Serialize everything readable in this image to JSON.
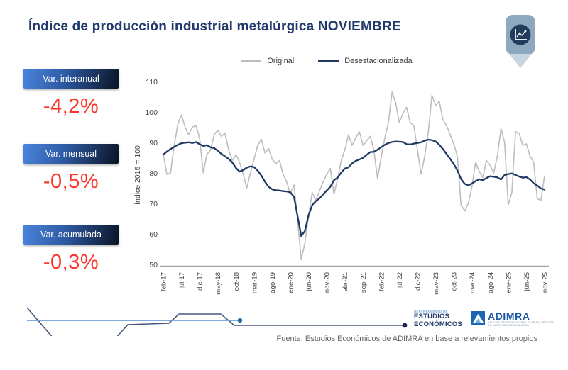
{
  "title": "Índice de producción industrial metalúrgica NOVIEMBRE",
  "header_icon": "line-chart-pin",
  "stats": [
    {
      "label": "Var. interanual",
      "value": "-4,2%"
    },
    {
      "label": "Var. mensual",
      "value": "-0,5%"
    },
    {
      "label": "Var. acumulada",
      "value": "-0,3%"
    }
  ],
  "colors": {
    "title_navy": "#20386b",
    "negative_value": "#fa352c",
    "original_line": "#bdbdbd",
    "desestacionalizada_line": "#1f3864"
  },
  "chart_data": {
    "type": "line",
    "title": "",
    "xlabel": "",
    "ylabel": "Índice 2015 = 100",
    "ylim": [
      50,
      110
    ],
    "y_ticks": [
      110,
      100,
      90,
      80,
      70,
      60,
      50
    ],
    "grid": false,
    "legend_position": "top-center",
    "x_start": "feb-17",
    "x_end": "nov-25",
    "n_points": 106,
    "tick_every": 5,
    "x_tick_labels": [
      "feb-17",
      "jul-17",
      "dic-17",
      "may-18",
      "oct-18",
      "mar-19",
      "ago-19",
      "ene-20",
      "jun-20",
      "nov-20",
      "abr-21",
      "sep-21",
      "feb-22",
      "jul-22",
      "dic-22",
      "may-23",
      "oct-23",
      "mar-24",
      "ago-24",
      "ene-25",
      "jun-25",
      "nov-25"
    ],
    "series": [
      {
        "name": "Original",
        "color": "#bdbdbd",
        "width": 1.6,
        "values": [
          86.5,
          80.0,
          80.5,
          89.5,
          96.5,
          99.5,
          95.5,
          93.0,
          95.5,
          96.0,
          92.0,
          80.5,
          86.5,
          88.0,
          93.0,
          94.5,
          92.5,
          93.5,
          88.0,
          84.5,
          86.5,
          84.0,
          80.0,
          75.5,
          80.5,
          85.0,
          89.5,
          91.5,
          87.0,
          88.5,
          85.0,
          83.5,
          84.5,
          80.0,
          77.5,
          73.5,
          76.5,
          65.0,
          52.0,
          57.5,
          66.5,
          74.0,
          71.5,
          74.5,
          77.5,
          80.0,
          82.0,
          73.5,
          78.5,
          84.5,
          88.0,
          93.0,
          89.5,
          92.0,
          94.0,
          89.5,
          91.0,
          92.5,
          88.0,
          78.5,
          85.5,
          92.0,
          97.0,
          107.0,
          103.5,
          97.0,
          100.0,
          102.0,
          97.0,
          96.0,
          88.0,
          80.0,
          86.0,
          94.0,
          106.0,
          102.5,
          104.0,
          98.0,
          96.0,
          93.0,
          90.0,
          86.0,
          70.0,
          68.0,
          70.5,
          76.0,
          84.0,
          81.0,
          79.0,
          84.5,
          83.0,
          80.5,
          86.0,
          95.0,
          90.5,
          70.0,
          74.0,
          94.0,
          93.5,
          89.5,
          90.0,
          86.0,
          84.0,
          72.0,
          71.5,
          79.5
        ]
      },
      {
        "name": "Desestacionalizada",
        "color": "#1f3864",
        "width": 2.3,
        "values": [
          86.5,
          87.5,
          88.3,
          89.0,
          89.7,
          90.2,
          90.4,
          90.5,
          90.3,
          90.6,
          89.9,
          89.3,
          89.6,
          88.9,
          88.6,
          87.8,
          86.7,
          85.9,
          85.1,
          83.9,
          82.1,
          80.9,
          81.4,
          82.2,
          82.6,
          82.4,
          81.2,
          79.6,
          77.6,
          75.9,
          75.1,
          74.8,
          74.7,
          74.5,
          74.4,
          74.1,
          72.6,
          66.2,
          59.8,
          61.4,
          66.6,
          69.9,
          71.2,
          72.1,
          73.4,
          74.7,
          75.9,
          78.1,
          78.9,
          80.6,
          81.9,
          82.3,
          83.6,
          84.4,
          84.9,
          85.4,
          86.4,
          87.3,
          87.4,
          88.1,
          88.9,
          89.7,
          90.3,
          90.6,
          90.8,
          90.7,
          90.6,
          89.9,
          89.8,
          90.1,
          90.3,
          90.5,
          91.1,
          91.4,
          91.2,
          90.8,
          89.7,
          88.3,
          86.7,
          85.1,
          83.4,
          81.3,
          78.5,
          76.9,
          76.4,
          77.0,
          77.8,
          78.4,
          78.1,
          78.8,
          79.4,
          79.2,
          79.0,
          78.3,
          79.8,
          80.1,
          80.3,
          79.8,
          79.3,
          78.9,
          79.1,
          78.3,
          77.1,
          76.3,
          75.4,
          75.0
        ]
      }
    ]
  },
  "footer": {
    "dept": {
      "small": "DEPARTAMENTO DE",
      "l1": "ESTUDIOS",
      "l2": "ECONÓMICOS"
    },
    "adimra": {
      "name": "ADIMRA",
      "tag1": "ASOCIACIÓN DE INDUSTRIALES METALÚRGICOS",
      "tag2": "DE LA REPÚBLICA ARGENTINA"
    },
    "source": "Fuente: Estudios Económicos de ADIMRA en base a relevamientos propios"
  }
}
